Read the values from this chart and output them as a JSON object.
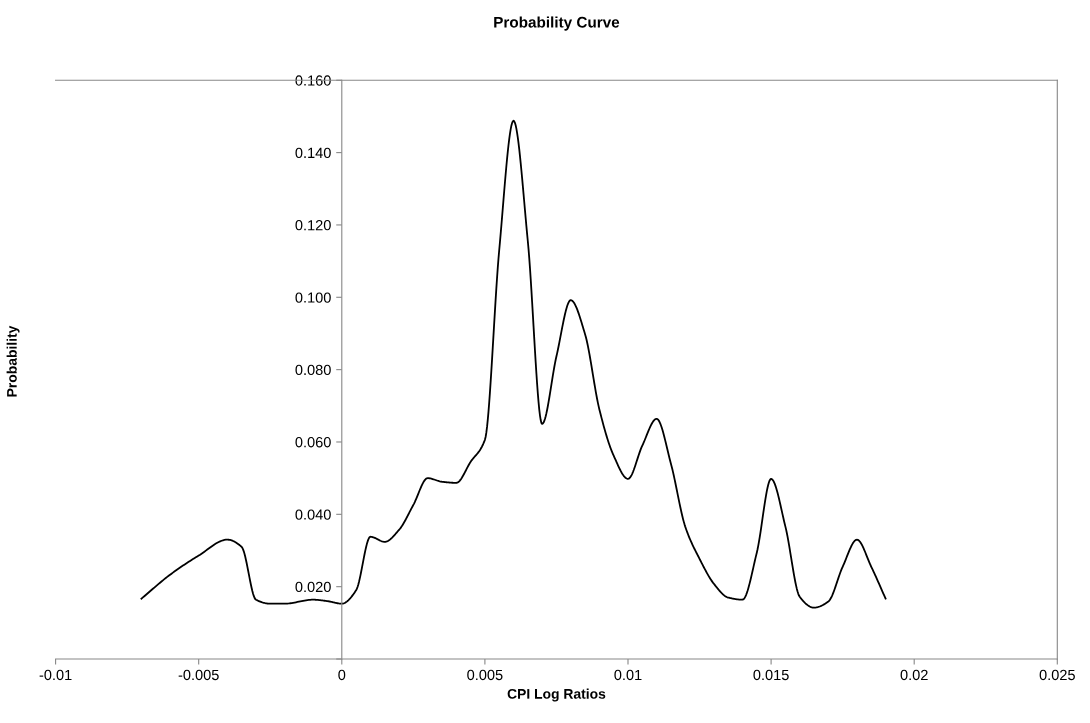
{
  "chart_data": {
    "type": "line",
    "title": "Probability Curve",
    "xlabel": "CPI Log Ratios",
    "ylabel": "Probability",
    "x": [
      -0.007,
      -0.006,
      -0.005,
      -0.004,
      -0.0035,
      -0.003,
      -0.0025,
      -0.002,
      -0.001,
      -0.0005,
      0,
      0.0005,
      0.001,
      0.0015,
      0.002,
      0.0025,
      0.003,
      0.0035,
      0.004,
      0.0045,
      0.005,
      0.0055,
      0.006,
      0.0065,
      0.007,
      0.0075,
      0.008,
      0.0085,
      0.009,
      0.0095,
      0.01,
      0.0105,
      0.011,
      0.0115,
      0.012,
      0.0125,
      0.013,
      0.0135,
      0.014,
      0.0145,
      0.015,
      0.0155,
      0.016,
      0.0165,
      0.017,
      0.0175,
      0.018,
      0.0185,
      0.019
    ],
    "series": [
      {
        "color": "#000000",
        "values": [
          0.0167,
          0.0233,
          0.0286,
          0.033,
          0.031,
          0.0164,
          0.0153,
          0.0153,
          0.0164,
          0.016,
          0.0153,
          0.019,
          0.0338,
          0.0324,
          0.0357,
          0.0426,
          0.05,
          0.049,
          0.0487,
          0.0545,
          0.0606,
          0.113,
          0.1488,
          0.1155,
          0.065,
          0.0837,
          0.0992,
          0.0898,
          0.069,
          0.0562,
          0.0498,
          0.059,
          0.0664,
          0.054,
          0.0366,
          0.0277,
          0.0208,
          0.017,
          0.0164,
          0.0294,
          0.0498,
          0.0366,
          0.0172,
          0.0142,
          0.0159,
          0.0255,
          0.033,
          0.0255,
          0.0167
        ]
      }
    ],
    "xlim": [
      -0.01,
      0.025
    ],
    "xticks": [
      -0.01,
      -0.005,
      0,
      0.005,
      0.01,
      0.015,
      0.02,
      0.025
    ],
    "ylim": [
      0,
      0.16
    ],
    "yticks": [
      {
        "value": 0,
        "label": null
      },
      {
        "value": 0.02,
        "label": "0.020"
      },
      {
        "value": 0.04,
        "label": "0.040"
      },
      {
        "value": 0.06,
        "label": "0.060"
      },
      {
        "value": 0.08,
        "label": "0.080"
      },
      {
        "value": 0.1,
        "label": "0.100"
      },
      {
        "value": 0.12,
        "label": "0.120"
      },
      {
        "value": 0.14,
        "label": "0.140"
      },
      {
        "value": 0.16,
        "label": "0.160"
      }
    ],
    "grid": false,
    "marker": "none",
    "line_style": "solid"
  }
}
